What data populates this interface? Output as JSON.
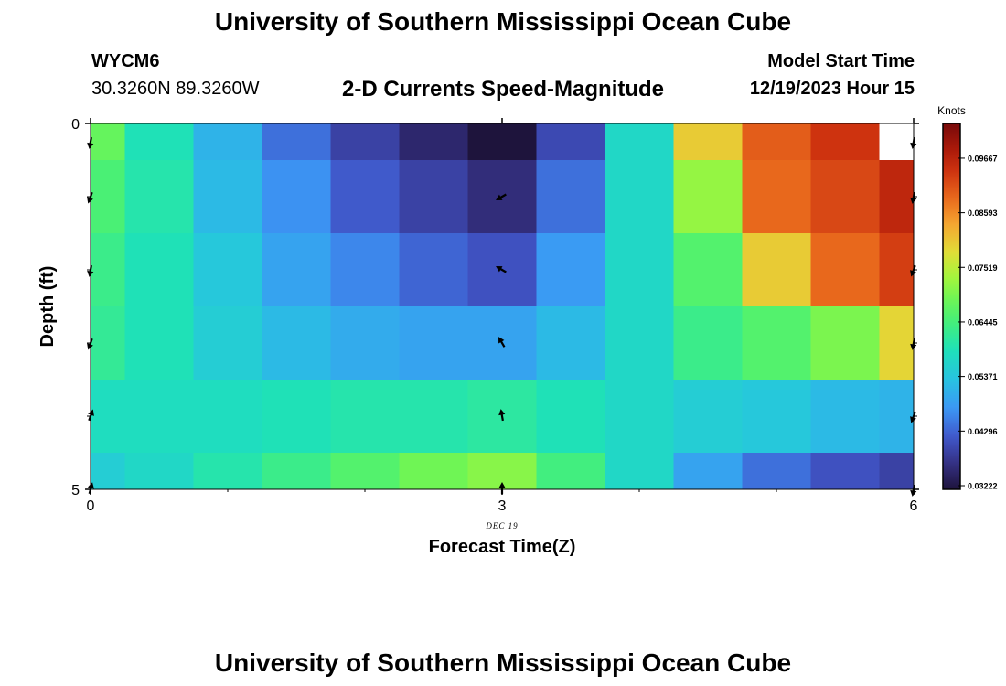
{
  "page": {
    "title_top": "University of Southern Mississippi Ocean Cube",
    "title_bottom": "University of Southern Mississippi Ocean Cube",
    "station_id": "WYCM6",
    "station_coords": "30.3260N  89.3260W",
    "subtitle": "2-D Currents Speed-Magnitude",
    "model_start_label": "Model Start Time",
    "model_start_value": "12/19/2023 Hour 15"
  },
  "chart_data": {
    "type": "heatmap",
    "title": "2-D Currents Speed-Magnitude",
    "xlabel": "Forecast Time(Z)",
    "ylabel": "Depth (ft)",
    "date_label": "DEC 19",
    "x_ticks": [
      "0",
      "3",
      "6"
    ],
    "y_ticks": [
      "0",
      "5"
    ],
    "xlim": [
      0,
      6
    ],
    "ylim": [
      0,
      5
    ],
    "colorbar": {
      "label": "Knots",
      "range": [
        0.0315,
        0.1035
      ],
      "ticks": [
        "0.09667",
        "0.08593",
        "0.07519",
        "0.06445",
        "0.05371",
        "0.04296",
        "0.03222"
      ],
      "tick_values": [
        0.09667,
        0.08593,
        0.07519,
        0.06445,
        0.05371,
        0.04296,
        0.03222
      ]
    },
    "grid_rows": [
      [
        0.068,
        0.059,
        0.051,
        0.044,
        0.039,
        0.035,
        0.029,
        0.04,
        0.057,
        0.08,
        0.09,
        0.094,
        null
      ],
      [
        0.065,
        0.06,
        0.052,
        0.047,
        0.042,
        0.039,
        0.036,
        0.044,
        0.057,
        0.072,
        0.089,
        0.092,
        0.096
      ],
      [
        0.063,
        0.059,
        0.054,
        0.049,
        0.046,
        0.043,
        0.041,
        0.048,
        0.057,
        0.066,
        0.08,
        0.089,
        0.093
      ],
      [
        0.062,
        0.059,
        0.055,
        0.052,
        0.05,
        0.049,
        0.049,
        0.052,
        0.057,
        0.063,
        0.066,
        0.07,
        0.079
      ],
      [
        0.058,
        0.058,
        0.058,
        0.059,
        0.06,
        0.06,
        0.061,
        0.059,
        0.057,
        0.055,
        0.054,
        0.052,
        0.051
      ],
      [
        0.055,
        0.057,
        0.06,
        0.063,
        0.066,
        0.069,
        0.071,
        0.064,
        0.057,
        0.049,
        0.044,
        0.041,
        0.039
      ]
    ],
    "arrows": [
      {
        "time": 0,
        "depth": 0.25,
        "direction_deg": 190
      },
      {
        "time": 0,
        "depth": 1.0,
        "direction_deg": 200
      },
      {
        "time": 0,
        "depth": 2.0,
        "direction_deg": 190
      },
      {
        "time": 0,
        "depth": 3.0,
        "direction_deg": 200
      },
      {
        "time": 0,
        "depth": 4.0,
        "direction_deg": 20
      },
      {
        "time": 0,
        "depth": 5.0,
        "direction_deg": 15
      },
      {
        "time": 3,
        "depth": 1.0,
        "direction_deg": 240
      },
      {
        "time": 3,
        "depth": 2.0,
        "direction_deg": 300
      },
      {
        "time": 3,
        "depth": 3.0,
        "direction_deg": 330
      },
      {
        "time": 3,
        "depth": 4.0,
        "direction_deg": 350
      },
      {
        "time": 3,
        "depth": 5.0,
        "direction_deg": 0
      },
      {
        "time": 6,
        "depth": 0.25,
        "direction_deg": 190
      },
      {
        "time": 6,
        "depth": 1.0,
        "direction_deg": 190
      },
      {
        "time": 6,
        "depth": 2.0,
        "direction_deg": 200
      },
      {
        "time": 6,
        "depth": 3.0,
        "direction_deg": 190
      },
      {
        "time": 6,
        "depth": 4.0,
        "direction_deg": 200
      },
      {
        "time": 6,
        "depth": 5.0,
        "direction_deg": 190
      }
    ]
  }
}
